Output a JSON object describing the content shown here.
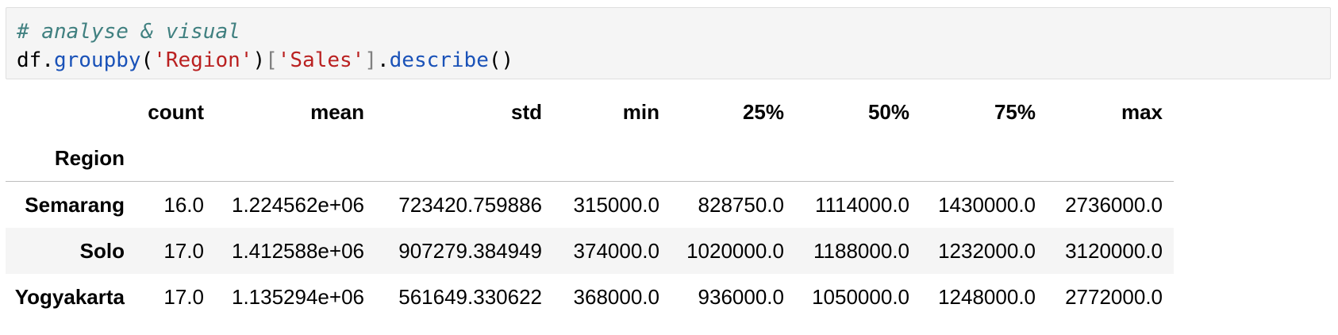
{
  "code": {
    "comment": "# analyse & visual",
    "line2": {
      "var": "df",
      "dot1": ".",
      "method1": "groupby",
      "paren_open": "(",
      "arg1": "'Region'",
      "paren_close": ")",
      "bracket_open": "[",
      "arg2": "'Sales'",
      "bracket_close": "]",
      "dot2": ".",
      "method2": "describe",
      "call": "()"
    }
  },
  "table": {
    "columns": [
      "count",
      "mean",
      "std",
      "min",
      "25%",
      "50%",
      "75%",
      "max"
    ],
    "index_name": "Region",
    "rows": [
      {
        "label": "Semarang",
        "values": [
          "16.0",
          "1.224562e+06",
          "723420.759886",
          "315000.0",
          "828750.0",
          "1114000.0",
          "1430000.0",
          "2736000.0"
        ]
      },
      {
        "label": "Solo",
        "values": [
          "17.0",
          "1.412588e+06",
          "907279.384949",
          "374000.0",
          "1020000.0",
          "1188000.0",
          "1232000.0",
          "3120000.0"
        ]
      },
      {
        "label": "Yogyakarta",
        "values": [
          "17.0",
          "1.135294e+06",
          "561649.330622",
          "368000.0",
          "936000.0",
          "1050000.0",
          "1248000.0",
          "2772000.0"
        ]
      }
    ]
  }
}
